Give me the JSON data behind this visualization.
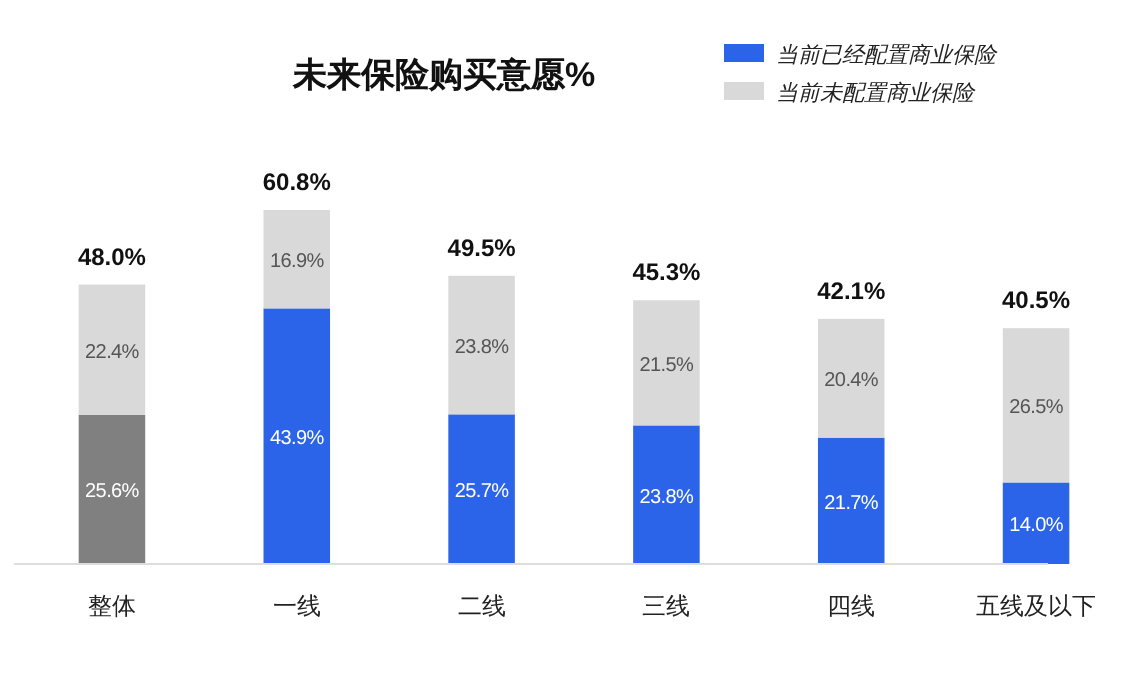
{
  "chart_data": {
    "type": "bar",
    "stacked": true,
    "title": "未来保险购买意愿%",
    "categories": [
      "整体",
      "一线",
      "二线",
      "三线",
      "四线",
      "五线及以下"
    ],
    "series": [
      {
        "name": "当前已经配置商业保险",
        "color": "#2b64e8",
        "colors": [
          "#808080",
          "#2b64e8",
          "#2b64e8",
          "#2b64e8",
          "#2b64e8",
          "#2b64e8"
        ],
        "values": [
          25.6,
          43.9,
          25.7,
          23.8,
          21.7,
          14.0
        ],
        "value_labels": [
          "25.6%",
          "43.9%",
          "25.7%",
          "23.8%",
          "21.7%",
          "14.0%"
        ]
      },
      {
        "name": "当前未配置商业保险",
        "color": "#d9d9d9",
        "values": [
          22.4,
          16.9,
          23.8,
          21.5,
          20.4,
          26.5
        ],
        "value_labels": [
          "22.4%",
          "16.9%",
          "23.8%",
          "21.5%",
          "20.4%",
          "26.5%"
        ]
      }
    ],
    "totals": [
      "48.0%",
      "60.8%",
      "49.5%",
      "45.3%",
      "42.1%",
      "40.5%"
    ],
    "legend": "top right"
  }
}
